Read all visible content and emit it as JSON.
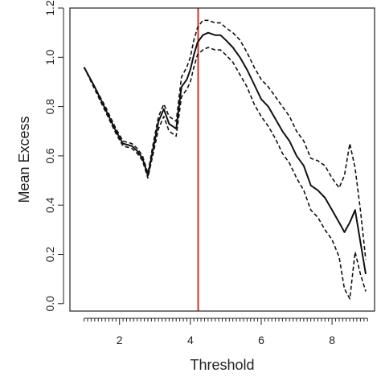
{
  "chart_data": {
    "type": "line",
    "title": "",
    "xlabel": "Threshold",
    "ylabel": "Mean Excess",
    "xlim": [
      0.6,
      9.2
    ],
    "ylim": [
      -0.03,
      1.2
    ],
    "x_ticks": [
      2,
      4,
      6,
      8
    ],
    "y_ticks": [
      0.0,
      0.2,
      0.4,
      0.6,
      0.8,
      1.0,
      1.2
    ],
    "grid": false,
    "legend": "none",
    "series": [
      {
        "style": "solid",
        "x": [
          1.0,
          1.3,
          1.6,
          1.9,
          2.1,
          2.35,
          2.5,
          2.65,
          2.8,
          2.95,
          3.1,
          3.25,
          3.4,
          3.5,
          3.6,
          3.75,
          3.9,
          4.0,
          4.1,
          4.2,
          4.35,
          4.5,
          4.7,
          4.85,
          5.0,
          5.2,
          5.4,
          5.6,
          5.8,
          6.0,
          6.2,
          6.4,
          6.6,
          6.8,
          7.0,
          7.2,
          7.4,
          7.6,
          7.8,
          8.0,
          8.2,
          8.35,
          8.5,
          8.65,
          8.8,
          8.95
        ],
        "y": [
          0.96,
          0.88,
          0.79,
          0.7,
          0.65,
          0.64,
          0.62,
          0.59,
          0.52,
          0.63,
          0.74,
          0.79,
          0.73,
          0.72,
          0.71,
          0.88,
          0.91,
          0.95,
          1.01,
          1.06,
          1.09,
          1.1,
          1.09,
          1.09,
          1.07,
          1.04,
          1.0,
          0.95,
          0.89,
          0.83,
          0.8,
          0.75,
          0.7,
          0.66,
          0.6,
          0.56,
          0.48,
          0.46,
          0.43,
          0.38,
          0.33,
          0.29,
          0.33,
          0.38,
          0.25,
          0.12
        ]
      },
      {
        "style": "dashed",
        "x": [
          1.0,
          1.3,
          1.6,
          1.9,
          2.1,
          2.35,
          2.5,
          2.65,
          2.8,
          2.95,
          3.1,
          3.25,
          3.4,
          3.5,
          3.6,
          3.75,
          3.9,
          4.0,
          4.1,
          4.2,
          4.35,
          4.5,
          4.7,
          4.85,
          5.0,
          5.2,
          5.4,
          5.6,
          5.8,
          6.0,
          6.2,
          6.4,
          6.6,
          6.8,
          7.0,
          7.2,
          7.4,
          7.6,
          7.8,
          8.0,
          8.2,
          8.35,
          8.5,
          8.65,
          8.8,
          8.95
        ],
        "y": [
          0.96,
          0.88,
          0.8,
          0.71,
          0.66,
          0.65,
          0.63,
          0.6,
          0.53,
          0.65,
          0.76,
          0.81,
          0.76,
          0.75,
          0.74,
          0.92,
          0.96,
          1.0,
          1.07,
          1.12,
          1.15,
          1.15,
          1.14,
          1.14,
          1.12,
          1.1,
          1.07,
          1.02,
          0.96,
          0.91,
          0.88,
          0.84,
          0.8,
          0.76,
          0.7,
          0.66,
          0.59,
          0.58,
          0.56,
          0.51,
          0.47,
          0.52,
          0.65,
          0.55,
          0.38,
          0.18
        ]
      },
      {
        "style": "dashed",
        "x": [
          1.0,
          1.3,
          1.6,
          1.9,
          2.1,
          2.35,
          2.5,
          2.65,
          2.8,
          2.95,
          3.1,
          3.25,
          3.4,
          3.5,
          3.6,
          3.75,
          3.9,
          4.0,
          4.1,
          4.2,
          4.35,
          4.5,
          4.7,
          4.85,
          5.0,
          5.2,
          5.4,
          5.6,
          5.8,
          6.0,
          6.2,
          6.4,
          6.6,
          6.8,
          7.0,
          7.2,
          7.4,
          7.6,
          7.8,
          8.0,
          8.2,
          8.35,
          8.5,
          8.65,
          8.8,
          8.95
        ],
        "y": [
          0.96,
          0.87,
          0.78,
          0.69,
          0.64,
          0.63,
          0.61,
          0.58,
          0.51,
          0.61,
          0.71,
          0.76,
          0.7,
          0.69,
          0.68,
          0.84,
          0.87,
          0.9,
          0.96,
          1.01,
          1.03,
          1.04,
          1.03,
          1.03,
          1.01,
          0.98,
          0.93,
          0.88,
          0.81,
          0.76,
          0.72,
          0.67,
          0.61,
          0.57,
          0.51,
          0.46,
          0.38,
          0.35,
          0.3,
          0.26,
          0.19,
          0.06,
          0.02,
          0.21,
          0.12,
          0.05
        ]
      }
    ],
    "reference_lines": [
      {
        "orientation": "vertical",
        "x": 4.22,
        "color": "#c0392b"
      }
    ]
  }
}
